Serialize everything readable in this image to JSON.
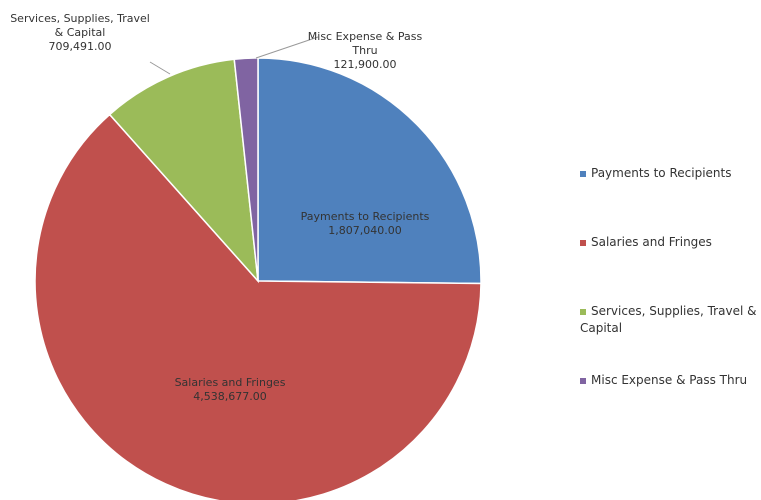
{
  "chart_data": {
    "type": "pie",
    "categories": [
      "Payments to Recipients",
      "Salaries and Fringes",
      "Services, Supplies, Travel & Capital",
      "Misc Expense & Pass Thru"
    ],
    "values": [
      1807040,
      4538677,
      709491,
      121900
    ],
    "value_labels": [
      "1,807,040.00",
      "4,538,677.00",
      "709,491.00",
      "121,900.00"
    ],
    "colors": [
      "#4f81bd",
      "#c0504d",
      "#9bbb59",
      "#8064a2"
    ],
    "legend": "right"
  }
}
